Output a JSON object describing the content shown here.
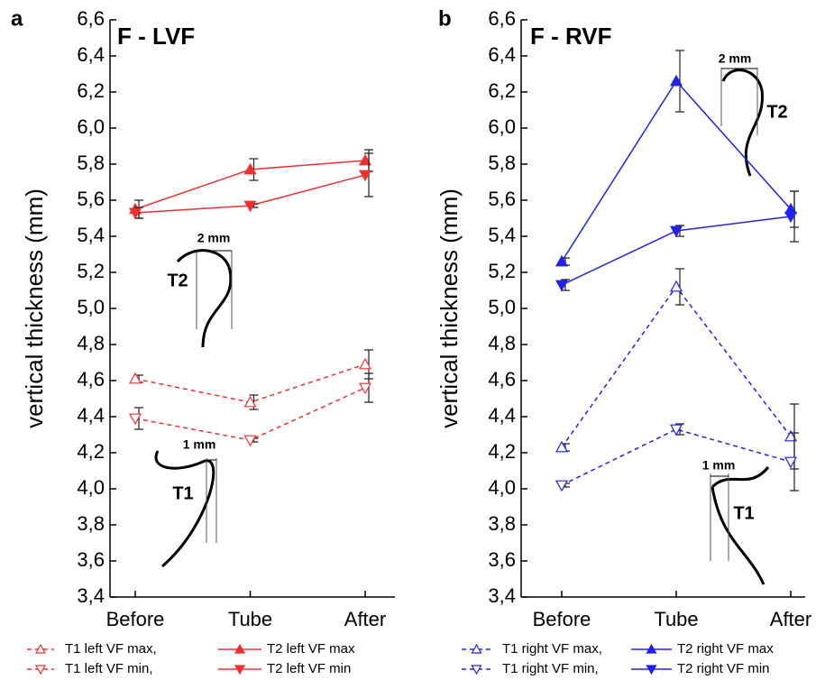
{
  "chart_data": [
    {
      "type": "line",
      "panel": "a",
      "title": "F - LVF",
      "y_label": "vertical thickness (mm)",
      "categories": [
        "Before",
        "Tube",
        "After"
      ],
      "ylim": [
        3.4,
        6.6
      ],
      "yticks": [
        {
          "value": 3.4,
          "label": "3,4"
        },
        {
          "value": 3.6,
          "label": "3,6"
        },
        {
          "value": 3.8,
          "label": "3,8"
        },
        {
          "value": 4.0,
          "label": "4,0"
        },
        {
          "value": 4.2,
          "label": "4,2"
        },
        {
          "value": 4.4,
          "label": "4,4"
        },
        {
          "value": 4.6,
          "label": "4,6"
        },
        {
          "value": 4.8,
          "label": "4,8"
        },
        {
          "value": 5.0,
          "label": "5,0"
        },
        {
          "value": 5.2,
          "label": "5,2"
        },
        {
          "value": 5.4,
          "label": "5,4"
        },
        {
          "value": 5.6,
          "label": "5,6"
        },
        {
          "value": 5.8,
          "label": "5,8"
        },
        {
          "value": 6.0,
          "label": "6,0"
        },
        {
          "value": 6.2,
          "label": "6,2"
        },
        {
          "value": 6.4,
          "label": "6,4"
        },
        {
          "value": 6.6,
          "label": "6,6"
        }
      ],
      "annotations": [
        "2 mm",
        "T2",
        "1 mm",
        "T1"
      ],
      "series": [
        {
          "name": "T1 left VF max,",
          "color": "#f03030",
          "line_style": "dashed",
          "marker": "triangle-up",
          "filled": false,
          "values": [
            4.61,
            4.48,
            4.69
          ],
          "errors": [
            0.02,
            0.04,
            0.08
          ]
        },
        {
          "name": "T2 left VF max",
          "color": "#f03030",
          "line_style": "solid",
          "marker": "triangle-up",
          "filled": true,
          "values": [
            5.55,
            5.77,
            5.82
          ],
          "errors": [
            0.05,
            0.06,
            0.06
          ]
        },
        {
          "name": "T1 left VF min,",
          "color": "#f03030",
          "line_style": "dashed",
          "marker": "triangle-down",
          "filled": false,
          "values": [
            4.39,
            4.27,
            4.56
          ],
          "errors": [
            0.06,
            0.01,
            0.08
          ]
        },
        {
          "name": "T2 left VF min",
          "color": "#f03030",
          "line_style": "solid",
          "marker": "triangle-down",
          "filled": true,
          "values": [
            5.53,
            5.57,
            5.74
          ],
          "errors": [
            0.03,
            0.01,
            0.12
          ]
        }
      ]
    },
    {
      "type": "line",
      "panel": "b",
      "title": "F - RVF",
      "y_label": "vertical thickness (mm)",
      "categories": [
        "Before",
        "Tube",
        "After"
      ],
      "ylim": [
        3.4,
        6.6
      ],
      "yticks": [
        {
          "value": 3.4,
          "label": "3,4"
        },
        {
          "value": 3.6,
          "label": "3,6"
        },
        {
          "value": 3.8,
          "label": "3,8"
        },
        {
          "value": 4.0,
          "label": "4,0"
        },
        {
          "value": 4.2,
          "label": "4,2"
        },
        {
          "value": 4.4,
          "label": "4,4"
        },
        {
          "value": 4.6,
          "label": "4,6"
        },
        {
          "value": 4.8,
          "label": "4,8"
        },
        {
          "value": 5.0,
          "label": "5,0"
        },
        {
          "value": 5.2,
          "label": "5,2"
        },
        {
          "value": 5.4,
          "label": "5,4"
        },
        {
          "value": 5.6,
          "label": "5,6"
        },
        {
          "value": 5.8,
          "label": "5,8"
        },
        {
          "value": 6.0,
          "label": "6,0"
        },
        {
          "value": 6.2,
          "label": "6,2"
        },
        {
          "value": 6.4,
          "label": "6,4"
        },
        {
          "value": 6.6,
          "label": "6,6"
        }
      ],
      "annotations": [
        "2 mm",
        "T2",
        "1 mm",
        "T1"
      ],
      "series": [
        {
          "name": "T1 right VF max,",
          "color": "#2020f0",
          "line_style": "dashed",
          "marker": "triangle-up",
          "filled": false,
          "values": [
            4.23,
            5.12,
            4.29
          ],
          "errors": [
            0.02,
            0.1,
            0.18
          ]
        },
        {
          "name": "T2 right VF max",
          "color": "#2020f0",
          "line_style": "solid",
          "marker": "triangle-up",
          "filled": true,
          "values": [
            5.26,
            6.26,
            5.55
          ],
          "errors": [
            0.02,
            0.17,
            0.1
          ]
        },
        {
          "name": "T1 right VF min,",
          "color": "#2020f0",
          "line_style": "dashed",
          "marker": "triangle-down",
          "filled": false,
          "values": [
            4.02,
            4.33,
            4.15
          ],
          "errors": [
            0.01,
            0.03,
            0.16
          ]
        },
        {
          "name": "T2 right VF min",
          "color": "#2020f0",
          "line_style": "solid",
          "marker": "triangle-down",
          "filled": true,
          "values": [
            5.13,
            5.43,
            5.51
          ],
          "errors": [
            0.03,
            0.03,
            0.14
          ]
        }
      ]
    }
  ]
}
